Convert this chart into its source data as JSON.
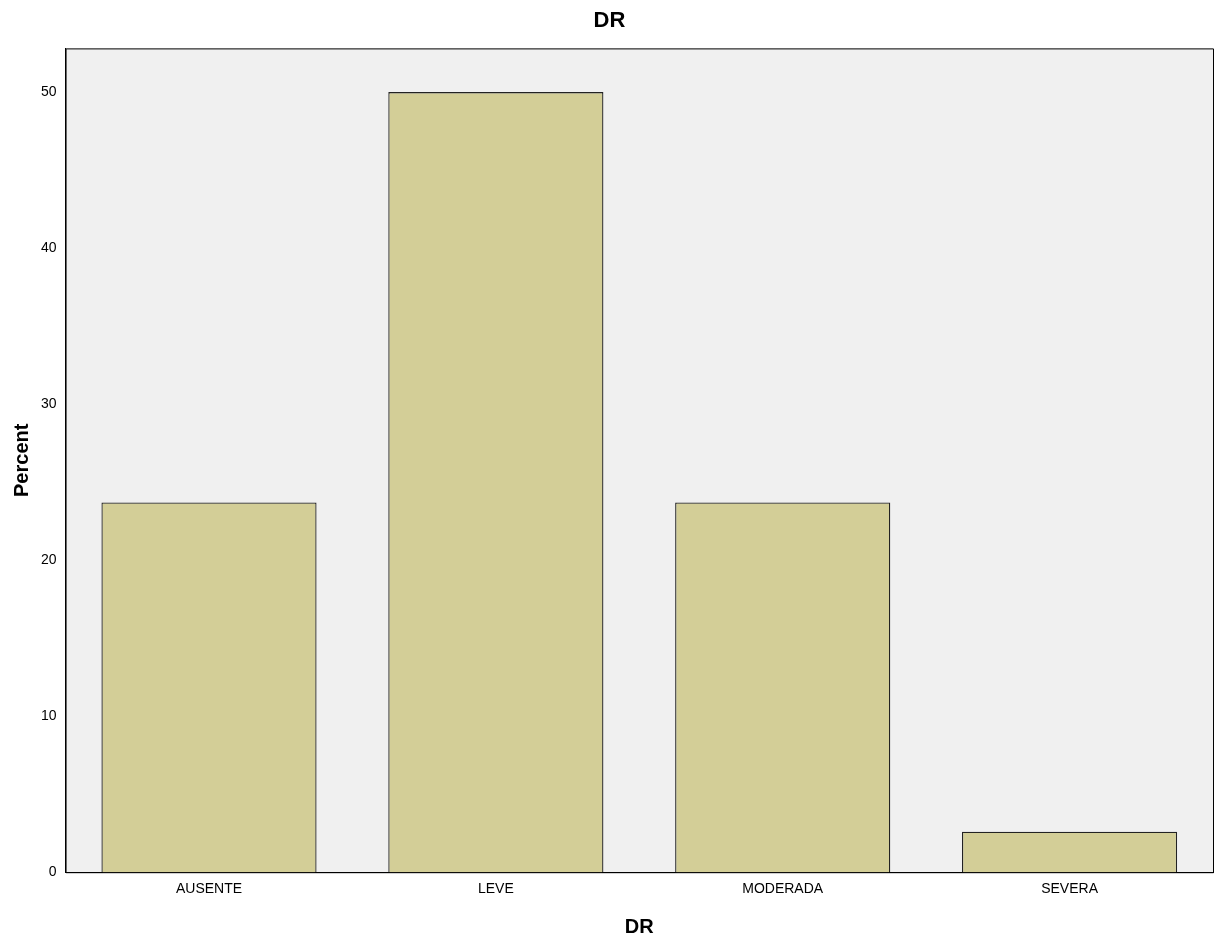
{
  "chart_data": {
    "type": "bar",
    "title": "DR",
    "xlabel": "DR",
    "ylabel": "Percent",
    "categories": [
      "AUSENTE",
      "LEVE",
      "MODERADA",
      "SEVERA"
    ],
    "values": [
      23.7,
      50,
      23.7,
      2.6
    ],
    "color": "#d3ce97",
    "ylim": [
      0,
      52.8
    ],
    "yticks": [
      0,
      10,
      20,
      30,
      40,
      50
    ],
    "grid": false,
    "legend": false
  }
}
